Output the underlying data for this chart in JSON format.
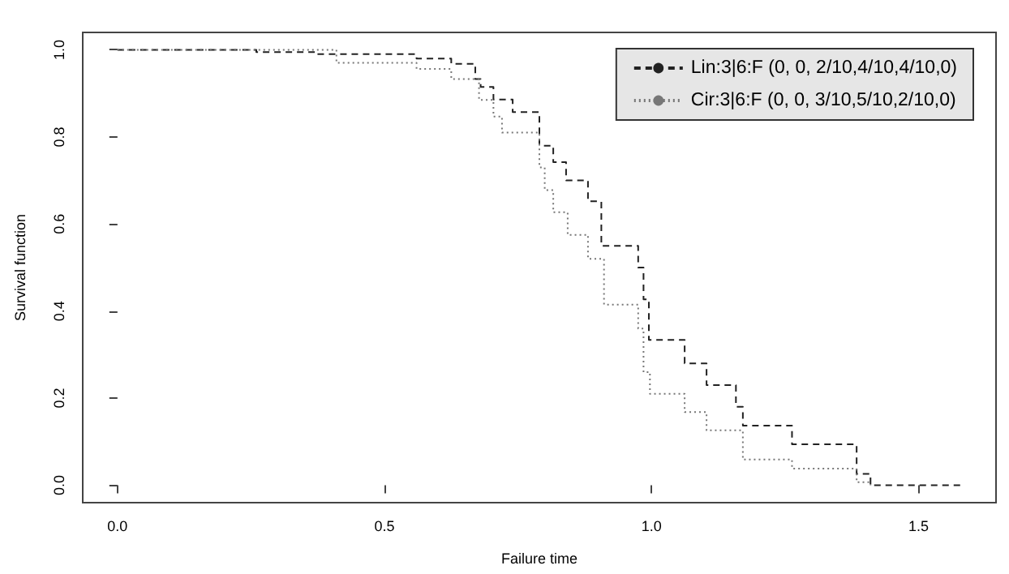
{
  "chart_data": {
    "type": "step",
    "xlabel": "Failure time",
    "ylabel": "Survival function",
    "xlim": [
      -0.065,
      1.645
    ],
    "ylim": [
      -0.04,
      1.04
    ],
    "xticks": [
      {
        "value": 0,
        "label": "0.0"
      },
      {
        "value": 0.5,
        "label": "0.5"
      },
      {
        "value": 1,
        "label": "1.0"
      },
      {
        "value": 1.5,
        "label": "1.5"
      }
    ],
    "yticks": [
      {
        "value": 0,
        "label": "0.0"
      },
      {
        "value": 0.2,
        "label": "0.2"
      },
      {
        "value": 0.4,
        "label": "0.4"
      },
      {
        "value": 0.6,
        "label": "0.6"
      },
      {
        "value": 0.8,
        "label": "0.8"
      },
      {
        "value": 1,
        "label": "1.0"
      }
    ],
    "grid": false,
    "legend": "top right",
    "marker": "none",
    "series": [
      {
        "name": "Lin:3|6:F (0, 0, 2/10,4/10,4/10,0)",
        "color": "#222222",
        "line_style": "dashed",
        "x": [
          0,
          0.26,
          0.37,
          0.56,
          0.625,
          0.67,
          0.68,
          0.704,
          0.74,
          0.79,
          0.816,
          0.84,
          0.881,
          0.906,
          0.975,
          0.985,
          0.995,
          1.062,
          1.103,
          1.158,
          1.171,
          1.263,
          1.384,
          1.41,
          1.58
        ],
        "values": [
          1.0,
          0.995,
          0.99,
          0.98,
          0.968,
          0.933,
          0.915,
          0.886,
          0.857,
          0.78,
          0.742,
          0.7,
          0.652,
          0.55,
          0.5,
          0.427,
          0.334,
          0.28,
          0.23,
          0.18,
          0.137,
          0.094,
          0.026,
          0.0,
          0.0
        ]
      },
      {
        "name": "Cir:3|6:F (0, 0, 3/10,5/10,2/10,0)",
        "color": "#777777",
        "line_style": "dotted",
        "x": [
          0,
          0.41,
          0.56,
          0.625,
          0.677,
          0.704,
          0.72,
          0.79,
          0.8,
          0.816,
          0.843,
          0.881,
          0.911,
          0.975,
          0.985,
          0.997,
          1.062,
          1.103,
          1.171,
          1.263,
          1.384,
          1.41
        ],
        "values": [
          1.0,
          0.97,
          0.956,
          0.933,
          0.885,
          0.847,
          0.81,
          0.73,
          0.678,
          0.627,
          0.575,
          0.52,
          0.415,
          0.36,
          0.26,
          0.21,
          0.168,
          0.126,
          0.059,
          0.038,
          0.007,
          0.0
        ]
      }
    ]
  }
}
